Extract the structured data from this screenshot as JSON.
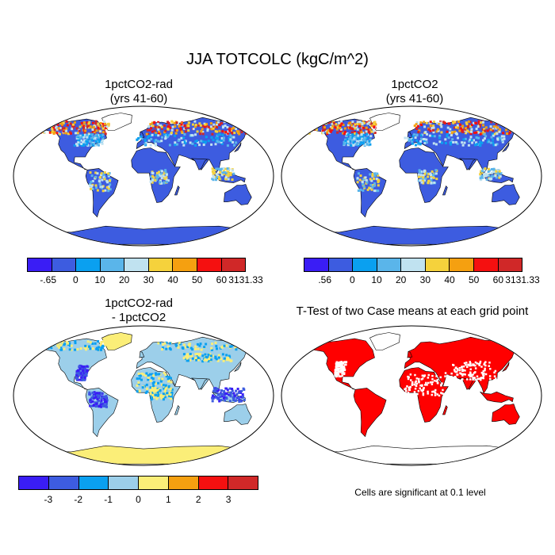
{
  "main_title": "JJA TOTCOLC (kgC/m^2)",
  "panels": [
    {
      "id": "p1",
      "title_line1": "1pctCO2-rad",
      "title_line2": "(yrs 41-60)"
    },
    {
      "id": "p2",
      "title_line1": "1pctCO2",
      "title_line2": "(yrs 41-60)"
    },
    {
      "id": "p3",
      "title_line1": "1pctCO2-rad",
      "title_line2": "- 1pctCO2"
    },
    {
      "id": "p4",
      "title_line1": "T-Test of two Case means at each grid point",
      "title_line2": ""
    }
  ],
  "colorbar1": {
    "colors": [
      "#3a1df5",
      "#3d5ce0",
      "#0aa0f0",
      "#5ab5ea",
      "#c0e2f0",
      "#f5d23c",
      "#f5a010",
      "#f51010",
      "#d02828"
    ],
    "labels": [
      "-.65",
      "0",
      "10",
      "20",
      "30",
      "40",
      "50",
      "60",
      "3131.33"
    ]
  },
  "colorbar2": {
    "colors": [
      "#3a1df5",
      "#3d5ce0",
      "#0aa0f0",
      "#5ab5ea",
      "#c0e2f0",
      "#f5d23c",
      "#f5a010",
      "#f51010",
      "#d02828"
    ],
    "labels": [
      ".56",
      "0",
      "10",
      "20",
      "30",
      "40",
      "50",
      "60",
      "3131.33"
    ]
  },
  "colorbar3": {
    "colors": [
      "#3a1df5",
      "#3d5ce0",
      "#0aa0f0",
      "#9ccfea",
      "#fbee78",
      "#f5a010",
      "#f51010",
      "#d02828"
    ],
    "labels": [
      "-3",
      "-2",
      "-1",
      "0",
      "1",
      "2",
      "3"
    ]
  },
  "note": "Cells are significant at 0.1 level"
}
